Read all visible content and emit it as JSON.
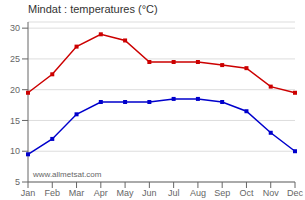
{
  "chart_data": {
    "type": "line",
    "title": "Mindat : temperatures (°C)",
    "categories": [
      "Jan",
      "Feb",
      "Mar",
      "Apr",
      "May",
      "Jun",
      "Jul",
      "Aug",
      "Sep",
      "Oct",
      "Nov",
      "Dec"
    ],
    "series": [
      {
        "color": "#cc0000",
        "values": [
          19.5,
          22.5,
          27.0,
          29.0,
          28.0,
          24.5,
          24.5,
          24.5,
          24.0,
          23.5,
          20.5,
          19.5
        ]
      },
      {
        "color": "#0000cc",
        "values": [
          9.5,
          12.0,
          16.0,
          18.0,
          18.0,
          18.0,
          18.5,
          18.5,
          18.0,
          16.5,
          13.0,
          10.0
        ]
      }
    ],
    "ylim": [
      5,
      31
    ],
    "yticks": [
      5,
      10,
      15,
      20,
      25,
      30
    ],
    "grid": "y",
    "marker": "square",
    "annotations": [
      "www.allmetsat.com"
    ]
  }
}
